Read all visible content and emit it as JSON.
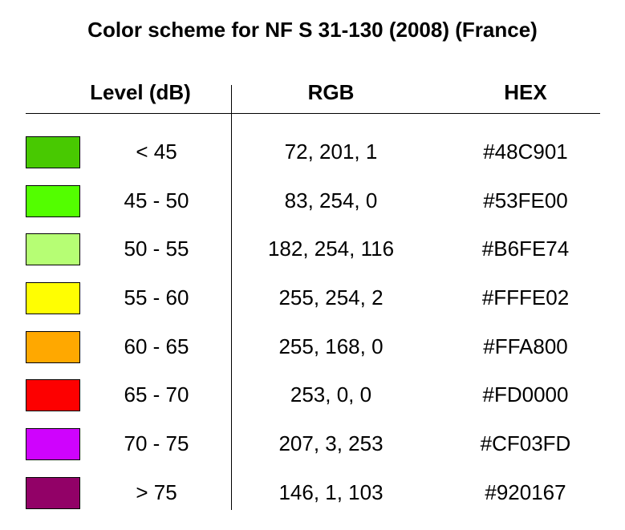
{
  "title": "Color scheme for NF S 31-130 (2008) (France)",
  "headers": {
    "level": "Level (dB)",
    "rgb": "RGB",
    "hex": "HEX"
  },
  "rows": [
    {
      "level": "< 45",
      "rgb": "72, 201, 1",
      "hex": "#48C901",
      "color": "#48C901"
    },
    {
      "level": "45 - 50",
      "rgb": "83, 254, 0",
      "hex": "#53FE00",
      "color": "#53FE00"
    },
    {
      "level": "50 - 55",
      "rgb": "182, 254, 116",
      "hex": "#B6FE74",
      "color": "#B6FE74"
    },
    {
      "level": "55 - 60",
      "rgb": "255, 254, 2",
      "hex": "#FFFE02",
      "color": "#FFFE02"
    },
    {
      "level": "60 - 65",
      "rgb": "255, 168, 0",
      "hex": "#FFA800",
      "color": "#FFA800"
    },
    {
      "level": "65 - 70",
      "rgb": "253, 0, 0",
      "hex": "#FD0000",
      "color": "#FD0000"
    },
    {
      "level": "70 - 75",
      "rgb": "207, 3, 253",
      "hex": "#CF03FD",
      "color": "#CF03FD"
    },
    {
      "level": "> 75",
      "rgb": "146, 1, 103",
      "hex": "#920167",
      "color": "#920167"
    }
  ]
}
